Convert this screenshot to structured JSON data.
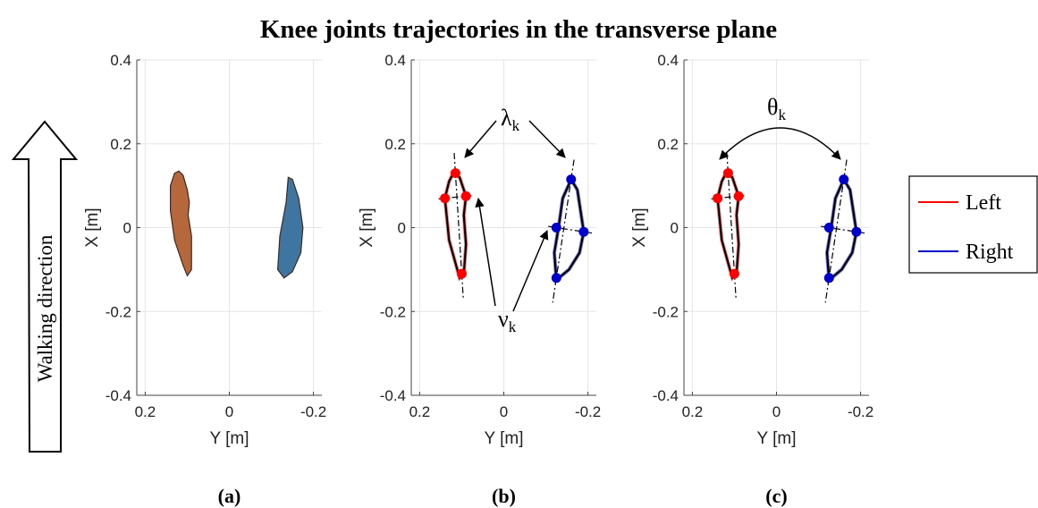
{
  "figure": {
    "title": "Knee joints trajectories in the transverse plane",
    "walking_arrow_label": "Walking direction",
    "legend": [
      {
        "label": "Left",
        "color": "#ff0000"
      },
      {
        "label": "Right",
        "color": "#0000cc"
      }
    ],
    "annotations": {
      "lambda_base": "λ",
      "lambda_sub": "k",
      "nu_base": "ν",
      "nu_sub": "k",
      "theta_base": "θ",
      "theta_sub": "k"
    }
  },
  "chart_data": [
    {
      "type": "line",
      "panel_label": "(a)",
      "xlabel": "Y [m]",
      "ylabel": "X [m]",
      "xlim": [
        0.22,
        -0.22
      ],
      "ylim": [
        -0.4,
        0.4
      ],
      "x_ticks": [
        "0.2",
        "0",
        "-0.2"
      ],
      "y_ticks": [
        "0.4",
        "0.2",
        "0",
        "-0.2",
        "-0.4"
      ],
      "grid": true,
      "series": [
        {
          "side": "left",
          "color": "#b05a2a",
          "x": [
            0.13,
            0.12,
            0.11,
            0.1,
            0.095,
            0.098,
            0.09,
            0.09,
            0.1,
            0.11,
            0.13,
            0.14,
            0.14,
            0.13
          ],
          "y": [
            0.13,
            0.135,
            0.125,
            0.09,
            0.06,
            0.03,
            -0.02,
            -0.1,
            -0.115,
            -0.09,
            -0.03,
            0.04,
            0.1,
            0.13
          ]
        },
        {
          "side": "right",
          "color": "#2e6a99",
          "x": [
            -0.14,
            -0.15,
            -0.165,
            -0.175,
            -0.17,
            -0.15,
            -0.13,
            -0.115,
            -0.12,
            -0.135,
            -0.14
          ],
          "y": [
            0.12,
            0.115,
            0.07,
            0.0,
            -0.06,
            -0.105,
            -0.12,
            -0.1,
            -0.02,
            0.06,
            0.12
          ]
        }
      ]
    },
    {
      "type": "line",
      "panel_label": "(b)",
      "xlabel": "Y [m]",
      "ylabel": "X [m]",
      "xlim": [
        0.22,
        -0.22
      ],
      "ylim": [
        -0.4,
        0.4
      ],
      "x_ticks": [
        "0.2",
        "0",
        "-0.2"
      ],
      "y_ticks": [
        "0.4",
        "0.2",
        "0",
        "-0.2",
        "-0.4"
      ],
      "grid": true,
      "series": [
        {
          "side": "left",
          "color": "#ff0000",
          "x": [
            0.12,
            0.105,
            0.09,
            0.095,
            0.09,
            0.095,
            0.105,
            0.13,
            0.14,
            0.13,
            0.12
          ],
          "y": [
            0.13,
            0.12,
            0.075,
            0.03,
            -0.04,
            -0.11,
            -0.12,
            -0.03,
            0.07,
            0.11,
            0.13
          ]
        },
        {
          "side": "right",
          "color": "#0000cc",
          "x": [
            -0.16,
            -0.175,
            -0.19,
            -0.18,
            -0.155,
            -0.125,
            -0.12,
            -0.13,
            -0.14,
            -0.16
          ],
          "y": [
            0.115,
            0.09,
            -0.01,
            -0.06,
            -0.1,
            -0.125,
            -0.06,
            0.0,
            0.07,
            0.115
          ]
        }
      ],
      "markers": [
        {
          "side": "left",
          "points": [
            [
              0.115,
              0.13
            ],
            [
              0.14,
              0.07
            ],
            [
              0.09,
              0.075
            ],
            [
              0.1,
              -0.11
            ]
          ]
        },
        {
          "side": "right",
          "points": [
            [
              -0.16,
              0.115
            ],
            [
              -0.125,
              0.0
            ],
            [
              -0.19,
              -0.01
            ],
            [
              -0.125,
              -0.12
            ]
          ]
        }
      ]
    },
    {
      "type": "line",
      "panel_label": "(c)",
      "xlabel": "Y [m]",
      "ylabel": "X [m]",
      "xlim": [
        0.22,
        -0.22
      ],
      "ylim": [
        -0.4,
        0.4
      ],
      "x_ticks": [
        "0.2",
        "0",
        "-0.2"
      ],
      "y_ticks": [
        "0.4",
        "0.2",
        "0",
        "-0.2",
        "-0.4"
      ],
      "grid": true,
      "series": [
        {
          "side": "left",
          "color": "#ff0000",
          "x": [
            0.12,
            0.105,
            0.09,
            0.095,
            0.09,
            0.095,
            0.105,
            0.13,
            0.14,
            0.13,
            0.12
          ],
          "y": [
            0.13,
            0.12,
            0.075,
            0.03,
            -0.04,
            -0.11,
            -0.12,
            -0.03,
            0.07,
            0.11,
            0.13
          ]
        },
        {
          "side": "right",
          "color": "#0000cc",
          "x": [
            -0.16,
            -0.175,
            -0.19,
            -0.18,
            -0.155,
            -0.125,
            -0.12,
            -0.13,
            -0.14,
            -0.16
          ],
          "y": [
            0.115,
            0.09,
            -0.01,
            -0.06,
            -0.1,
            -0.125,
            -0.06,
            0.0,
            0.07,
            0.115
          ]
        }
      ],
      "markers": [
        {
          "side": "left",
          "points": [
            [
              0.115,
              0.13
            ],
            [
              0.14,
              0.07
            ],
            [
              0.09,
              0.075
            ],
            [
              0.1,
              -0.11
            ]
          ]
        },
        {
          "side": "right",
          "points": [
            [
              -0.16,
              0.115
            ],
            [
              -0.125,
              0.0
            ],
            [
              -0.19,
              -0.01
            ],
            [
              -0.125,
              -0.12
            ]
          ]
        }
      ]
    }
  ]
}
